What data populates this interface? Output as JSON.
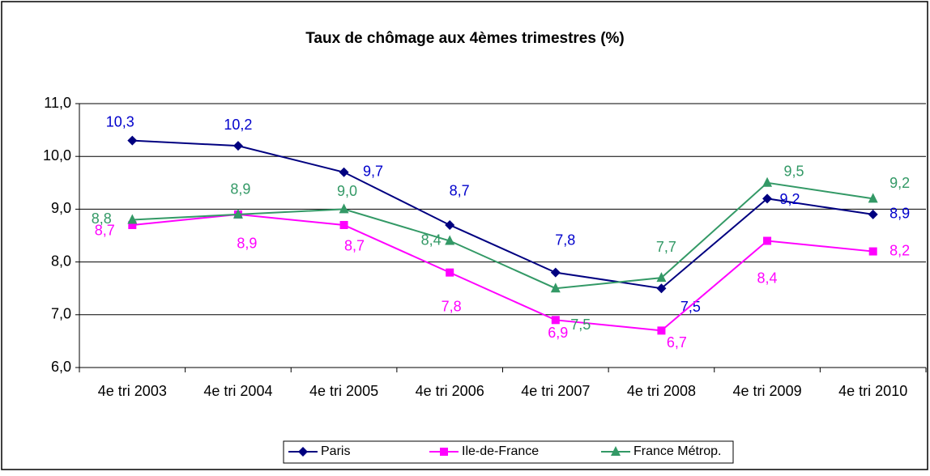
{
  "chart_data": {
    "type": "line",
    "title": "Taux de chômage aux 4èmes trimestres (%)",
    "categories": [
      "4e tri 2003",
      "4e tri 2004",
      "4e tri 2005",
      "4e tri 2006",
      "4e tri 2007",
      "4e tri 2008",
      "4e tri 2009",
      "4e tri 2010"
    ],
    "series": [
      {
        "name": "Paris",
        "color": "#000080",
        "label_color": "#0000CC",
        "marker": "diamond",
        "values": [
          10.3,
          10.2,
          9.7,
          8.7,
          7.8,
          7.5,
          9.2,
          8.9
        ],
        "value_labels": [
          "10,3",
          "10,2",
          "9,7",
          "8,7",
          "7,8",
          "7,5",
          "9,2",
          "8,9"
        ]
      },
      {
        "name": "Ile-de-France",
        "color": "#FF00FF",
        "label_color": "#FF00FF",
        "marker": "square",
        "values": [
          8.7,
          8.9,
          8.7,
          7.8,
          6.9,
          6.7,
          8.4,
          8.2
        ],
        "value_labels": [
          "8,7",
          "8,9",
          "8,7",
          "7,8",
          "6,9",
          "6,7",
          "8,4",
          "8,2"
        ]
      },
      {
        "name": "France Métrop.",
        "color": "#339966",
        "label_color": "#339966",
        "marker": "triangle",
        "values": [
          8.8,
          8.9,
          9.0,
          8.4,
          7.5,
          7.7,
          9.5,
          9.2
        ],
        "value_labels": [
          "8,8",
          "8,9",
          "9,0",
          "8,4",
          "7,5",
          "7,7",
          "9,5",
          "9,2"
        ]
      }
    ],
    "ylim": [
      6,
      11
    ],
    "yticks": [
      {
        "value": 6,
        "label": "6,0"
      },
      {
        "value": 7,
        "label": "7,0"
      },
      {
        "value": 8,
        "label": "8,0"
      },
      {
        "value": 9,
        "label": "9,0"
      },
      {
        "value": 10,
        "label": "10,0"
      },
      {
        "value": 11,
        "label": "11,0"
      }
    ],
    "grid": true,
    "legend": "bottom"
  }
}
